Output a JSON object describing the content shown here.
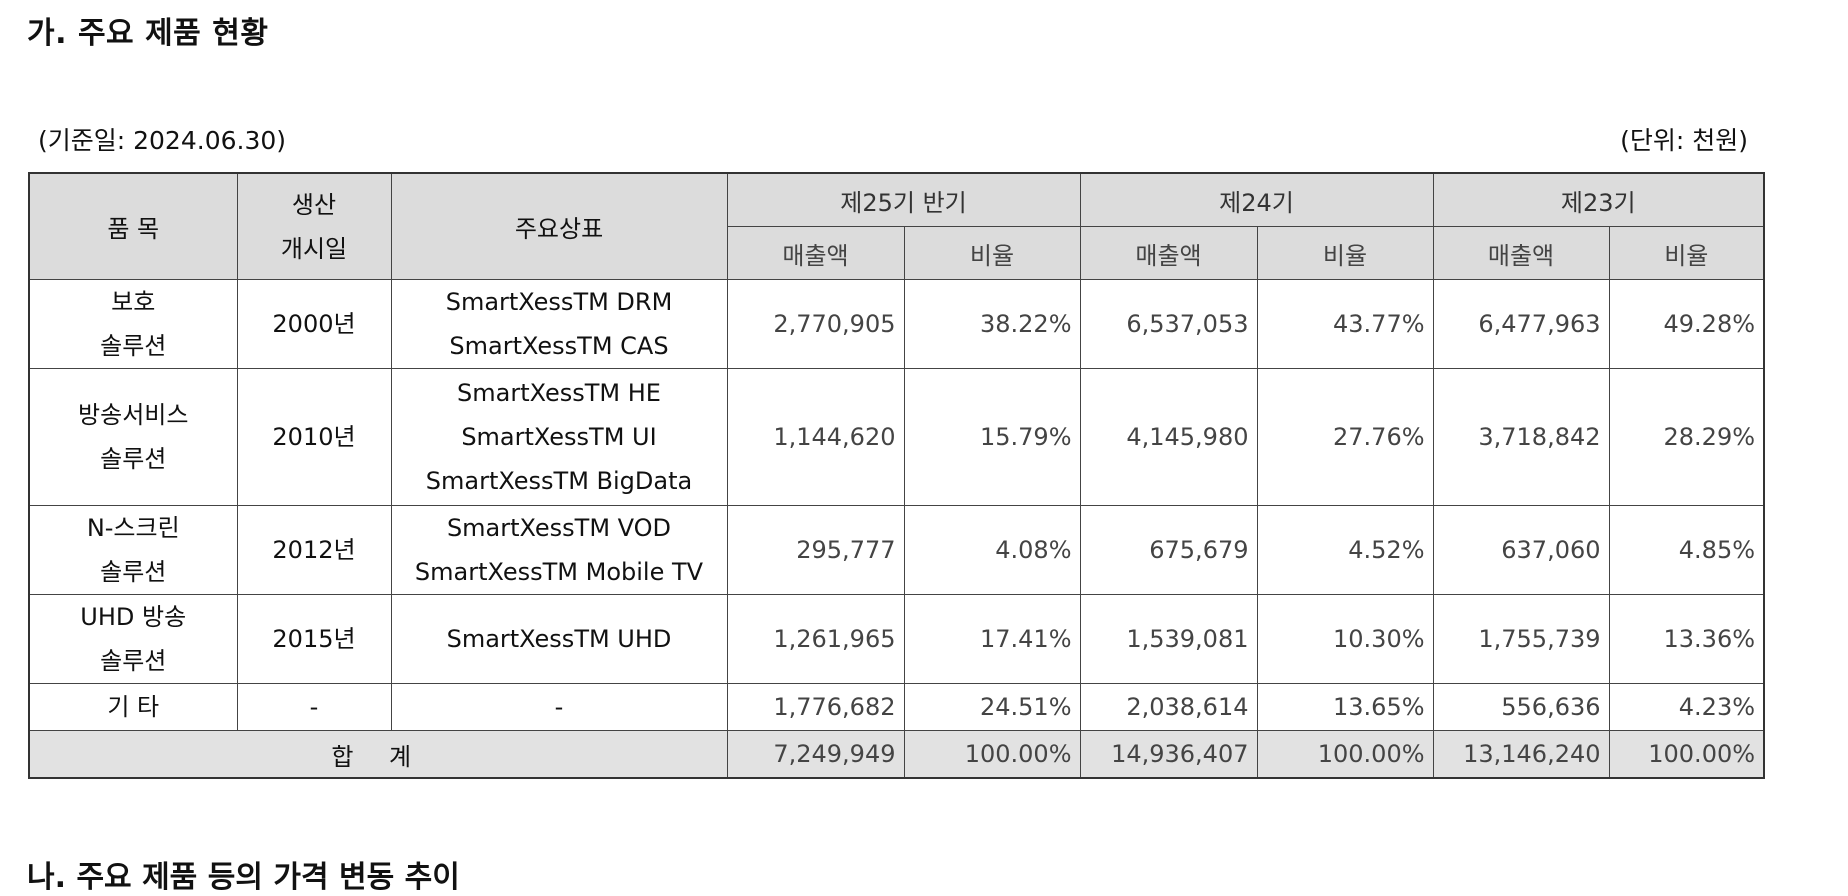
{
  "section_title": "가. 주요 제품 현황",
  "base_date": "(기준일: 2024.06.30)",
  "unit": "(단위: 천원)",
  "table": {
    "headers": {
      "item": "품 목",
      "start_line1": "생산",
      "start_line2": "개시일",
      "brand": "주요상표",
      "period1": "제25기 반기",
      "period2": "제24기",
      "period3": "제23기",
      "sales": "매출액",
      "ratio": "비율"
    },
    "rows": [
      {
        "item": [
          "보호",
          "솔루션"
        ],
        "start": "2000년",
        "brands": [
          "SmartXessTM DRM",
          "SmartXessTM CAS"
        ],
        "p1_sales": "2,770,905",
        "p1_ratio": "38.22%",
        "p2_sales": "6,537,053",
        "p2_ratio": "43.77%",
        "p3_sales": "6,477,963",
        "p3_ratio": "49.28%"
      },
      {
        "item": [
          "방송서비스",
          "솔루션"
        ],
        "start": "2010년",
        "brands": [
          "SmartXessTM HE",
          "SmartXessTM UI",
          "SmartXessTM BigData"
        ],
        "p1_sales": "1,144,620",
        "p1_ratio": "15.79%",
        "p2_sales": "4,145,980",
        "p2_ratio": "27.76%",
        "p3_sales": "3,718,842",
        "p3_ratio": "28.29%"
      },
      {
        "item": [
          "N-스크린",
          "솔루션"
        ],
        "start": "2012년",
        "brands": [
          "SmartXessTM VOD",
          "SmartXessTM Mobile TV"
        ],
        "p1_sales": "295,777",
        "p1_ratio": "4.08%",
        "p2_sales": "675,679",
        "p2_ratio": "4.52%",
        "p3_sales": "637,060",
        "p3_ratio": "4.85%"
      },
      {
        "item": [
          "UHD 방송",
          "솔루션"
        ],
        "start": "2015년",
        "brands": [
          "SmartXessTM UHD"
        ],
        "p1_sales": "1,261,965",
        "p1_ratio": "17.41%",
        "p2_sales": "1,539,081",
        "p2_ratio": "10.30%",
        "p3_sales": "1,755,739",
        "p3_ratio": "13.36%"
      },
      {
        "item": [
          "기 타"
        ],
        "start": "-",
        "brands": [
          "-"
        ],
        "p1_sales": "1,776,682",
        "p1_ratio": "24.51%",
        "p2_sales": "2,038,614",
        "p2_ratio": "13.65%",
        "p3_sales": "556,636",
        "p3_ratio": "4.23%"
      }
    ],
    "total": {
      "label": "합 계",
      "p1_sales": "7,249,949",
      "p1_ratio": "100.00%",
      "p2_sales": "14,936,407",
      "p2_ratio": "100.00%",
      "p3_sales": "13,146,240",
      "p3_ratio": "100.00%"
    }
  },
  "next_section_title": "나. 주요 제품 등의 가격 변동 추이"
}
